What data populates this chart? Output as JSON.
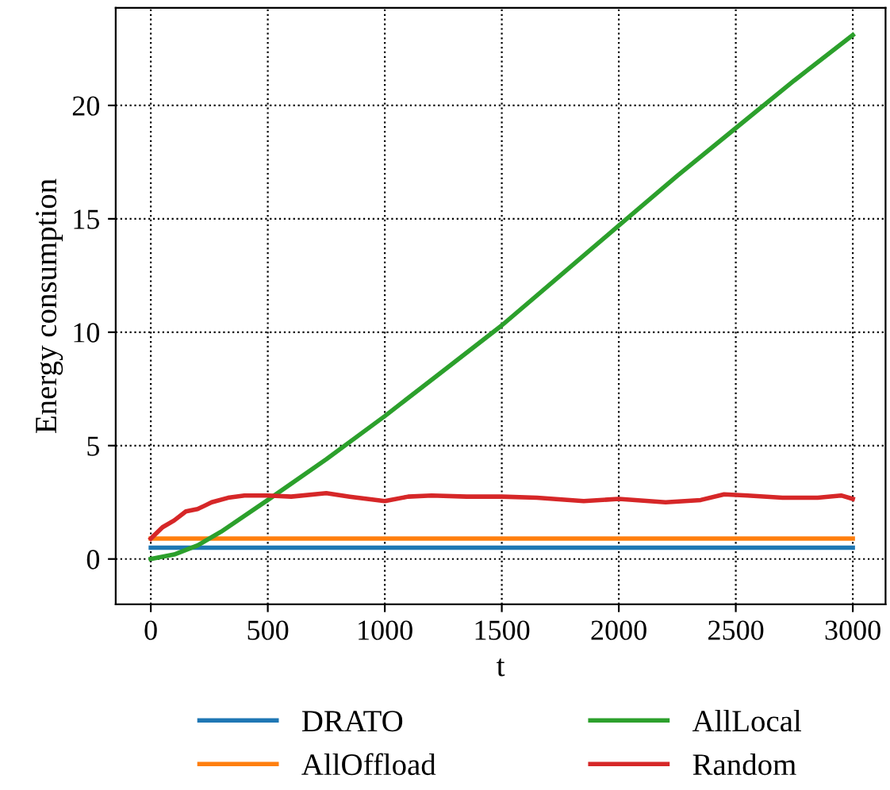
{
  "chart_data": {
    "type": "line",
    "xlabel": "t",
    "ylabel": "Energy consumption",
    "xlim": [
      -150,
      3140
    ],
    "ylim": [
      -2,
      24.3
    ],
    "xticks": [
      0,
      500,
      1000,
      1500,
      2000,
      2500,
      3000
    ],
    "yticks": [
      0,
      5,
      10,
      15,
      20
    ],
    "grid": true,
    "legend": "bottom",
    "line_style": "solid",
    "marker": "none",
    "series": [
      {
        "name": "DRATO",
        "color": "#1f77b4",
        "x": [
          0,
          3000
        ],
        "values": [
          0.5,
          0.5
        ]
      },
      {
        "name": "AllOffload",
        "color": "#ff7f0e",
        "x": [
          0,
          3000
        ],
        "values": [
          0.9,
          0.9
        ]
      },
      {
        "name": "AllLocal",
        "color": "#2ca02c",
        "x": [
          0,
          100,
          200,
          300,
          500,
          750,
          1000,
          1250,
          1500,
          1750,
          2000,
          2250,
          2500,
          2750,
          3000
        ],
        "values": [
          0,
          0.2,
          0.6,
          1.2,
          2.6,
          4.4,
          6.3,
          8.3,
          10.3,
          12.5,
          14.7,
          16.9,
          19.0,
          21.1,
          23.1
        ]
      },
      {
        "name": "Random",
        "color": "#d62728",
        "x": [
          0,
          50,
          100,
          150,
          200,
          260,
          330,
          400,
          500,
          600,
          750,
          850,
          1000,
          1100,
          1200,
          1350,
          1500,
          1650,
          1850,
          2000,
          2200,
          2350,
          2450,
          2550,
          2700,
          2850,
          2950,
          3000
        ],
        "values": [
          0.9,
          1.4,
          1.7,
          2.1,
          2.2,
          2.5,
          2.7,
          2.8,
          2.8,
          2.75,
          2.9,
          2.75,
          2.55,
          2.75,
          2.8,
          2.75,
          2.75,
          2.7,
          2.55,
          2.65,
          2.5,
          2.6,
          2.85,
          2.8,
          2.7,
          2.7,
          2.8,
          2.65
        ]
      }
    ]
  }
}
